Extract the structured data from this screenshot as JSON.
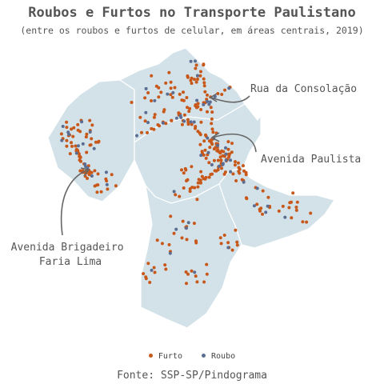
{
  "title": "Roubos e Furtos no Transporte Paulistano",
  "subtitle": "(entre os roubos e furtos de celular, em áreas centrais, 2019)",
  "source": "Fonte: SSP-SP/Pindograma",
  "colors": {
    "furto": "#c8581a",
    "roubo": "#5b6d92",
    "region_fill": "#d3e2e8",
    "region_border": "#ffffff",
    "annotation": "#666666"
  },
  "legend": [
    {
      "key": "furto",
      "label": "Furto"
    },
    {
      "key": "roubo",
      "label": "Roubo"
    }
  ],
  "annotations": [
    {
      "id": "consolacao",
      "label": "Rua da Consolação"
    },
    {
      "id": "paulista",
      "label": "Avenida Paulista"
    },
    {
      "id": "faria-lima",
      "label_lines": [
        "Avenida Brigadeiro",
        "Faria Lima"
      ]
    }
  ]
}
